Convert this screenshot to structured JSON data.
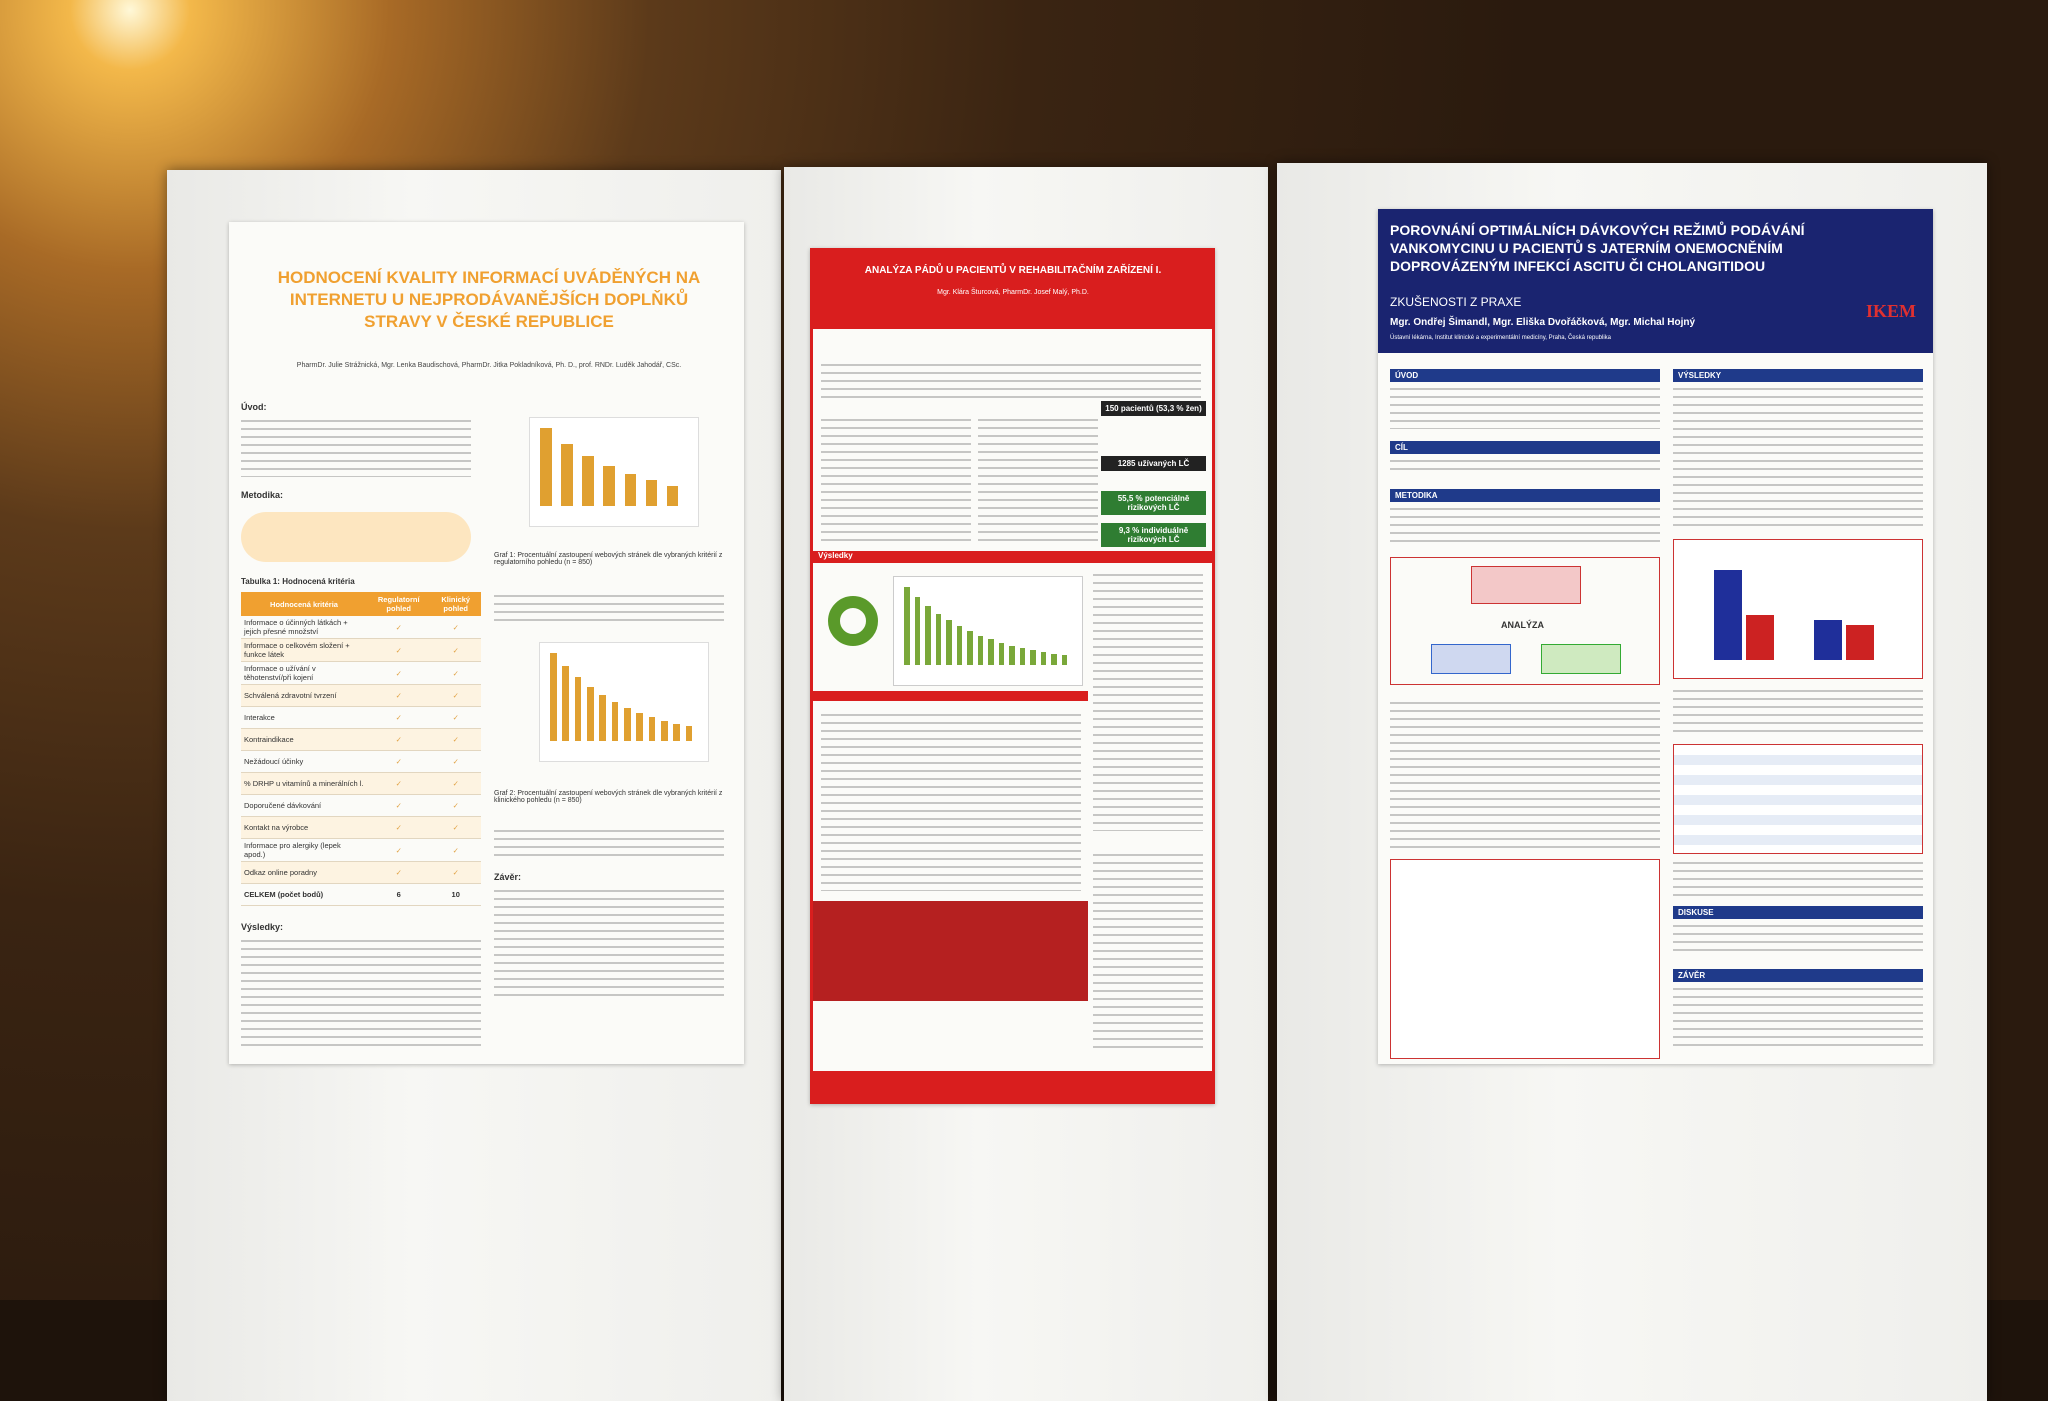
{
  "posters": [
    {
      "title": "HODNOCENÍ KVALITY INFORMACÍ UVÁDĚNÝCH NA INTERNETU U NEJPRODÁVANĚJŠÍCH DOPLŇKŮ STRAVY V ČESKÉ REPUBLICE",
      "authors": "PharmDr. Julie Strážnická, Mgr. Lenka Baudischová, PharmDr. Jitka Pokladníková, Ph. D., prof. RNDr. Luděk Jahodář, CSc.",
      "sections": [
        "Úvod:",
        "Metodika:",
        "Výsledky:",
        "Závěr:"
      ],
      "table_title": "Tabulka 1: Hodnocená kritéria",
      "table_header": [
        "Hodnocená kritéria",
        "Regulatorní pohled",
        "Klinický pohled"
      ],
      "table_rows": [
        "Informace o účinných látkách + jejich přesné množství",
        "Informace o celkovém složení + funkce látek",
        "Informace o užívání v těhotenství/při kojení",
        "Schválená zdravotní tvrzení",
        "Interakce",
        "Kontraindikace",
        "Nežádoucí účinky",
        "% DRHP u vitamínů a minerálních l.",
        "Doporučené dávkování",
        "Kontakt na výrobce",
        "Informace pro alergiky (lepek apod.)",
        "Odkaz online poradny"
      ],
      "table_total": [
        "CELKEM (počet bodů)",
        "6",
        "10"
      ],
      "captions": [
        "Graf 1: Procentuální zastoupení webových stránek dle vybraných kritérií z regulatorního pohledu (n = 850)",
        "Graf 2: Procentuální zastoupení webových stránek dle vybraných kritérií z klinického pohledu (n = 850)"
      ]
    },
    {
      "title": "ANALÝZA PÁDŮ U PACIENTŮ V REHABILITAČNÍM ZAŘÍZENÍ I.",
      "authors": "Mgr. Klára Šturcová, PharmDr. Josef Malý, Ph.D.",
      "flow": [
        "150 pacientů (53,3 % žen)",
        "1285 užívaných LČ",
        "55,5 % potenciálně rizikových LČ",
        "9,3 % individuálně rizikových LČ"
      ],
      "sections": [
        "Výsledky"
      ]
    },
    {
      "title": "POROVNÁNÍ OPTIMÁLNÍCH DÁVKOVÝCH REŽIMŮ PODÁVÁNÍ VANKOMYCINU U PACIENTŮ S JATERNÍM ONEMOCNĚNÍM DOPROVÁZENÝM INFEKCÍ ASCITU ČI CHOLANGITIDOU",
      "subtitle": "ZKUŠENOSTI Z PRAXE",
      "authors": "Mgr. Ondřej Šimandl, Mgr. Eliška Dvořáčková, Mgr. Michal Hojný",
      "affiliation": "Ústavní lékárna, Institut klinické a experimentální medicíny, Praha, Česká republika",
      "logo": "IKEM",
      "sections": [
        "ÚVOD",
        "CÍL",
        "METODIKA",
        "VÝSLEDKY",
        "DISKUSE",
        "ZÁVĚR"
      ],
      "diagram_label": "ANALÝZA"
    }
  ]
}
